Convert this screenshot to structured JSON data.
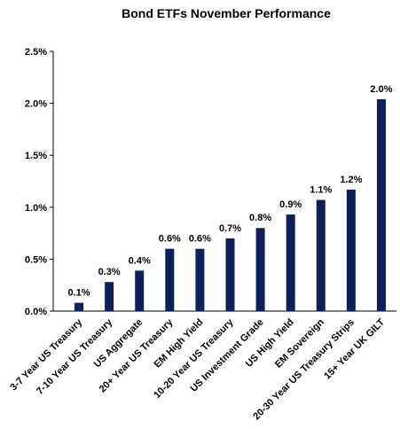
{
  "chart_data": {
    "type": "bar",
    "title": "Bond ETFs November Performance",
    "categories": [
      "3-7 Year US Treasury",
      "7-10 Year US Treasury",
      "US Aggregate",
      "20+ Year US Treasury",
      "EM High Yield",
      "10-20 Year US Treasury",
      "US Investment Grade",
      "US High Yield",
      "EM Sovereign",
      "20-30 Year US Treasury Strips",
      "15+ Year UK GILT"
    ],
    "values": [
      0.08,
      0.28,
      0.39,
      0.6,
      0.6,
      0.7,
      0.8,
      0.93,
      1.07,
      1.17,
      2.04
    ],
    "data_labels": [
      "0.1%",
      "0.3%",
      "0.4%",
      "0.6%",
      "0.6%",
      "0.7%",
      "0.8%",
      "0.9%",
      "1.1%",
      "1.2%",
      "2.0%"
    ],
    "yticks": [
      "0.0%",
      "0.5%",
      "1.0%",
      "1.5%",
      "2.0%",
      "2.5%"
    ],
    "ylim": [
      0,
      2.5
    ],
    "xlabel": "",
    "ylabel": "",
    "grid": false,
    "legend": "none",
    "bar_color": "#0d1f5c"
  }
}
